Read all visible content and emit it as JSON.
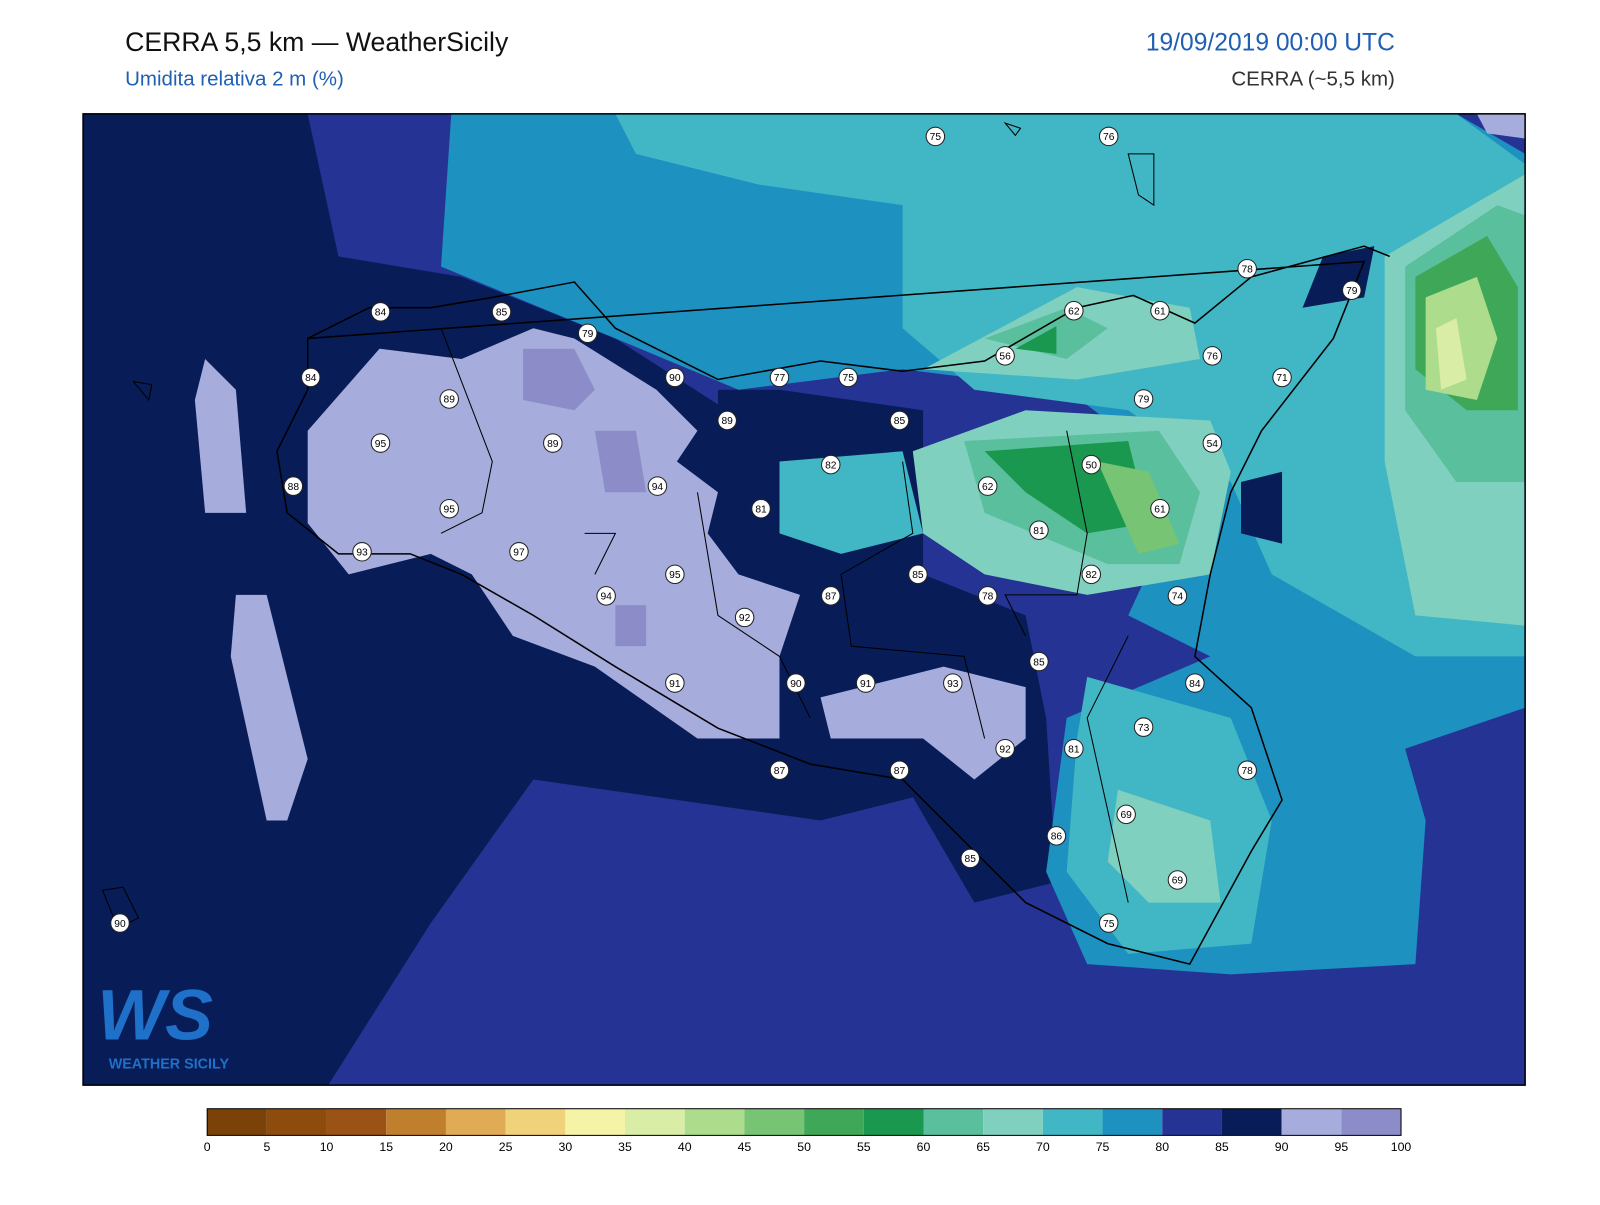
{
  "header": {
    "title": "CERRA 5,5 km — WeatherSicily",
    "subtitle": "Umidita relativa 2 m (%)",
    "datetime": "19/09/2019 00:00 UTC",
    "model": "CERRA (~5,5 km)"
  },
  "stations": [
    75,
    76,
    78,
    79,
    84,
    85,
    79,
    62,
    61,
    56,
    76,
    84,
    90,
    77,
    75,
    71,
    79,
    89,
    89,
    85,
    95,
    89,
    54,
    82,
    50,
    88,
    94,
    62,
    81,
    95,
    61,
    81,
    93,
    97,
    95,
    85,
    82,
    94,
    87,
    78,
    74,
    92,
    85,
    91,
    90,
    91,
    93,
    84,
    73,
    92,
    81,
    87,
    87,
    78,
    69,
    86,
    85,
    69,
    75,
    90
  ],
  "colorbar": {
    "ticks": [
      0,
      5,
      10,
      15,
      20,
      25,
      30,
      35,
      40,
      45,
      50,
      55,
      60,
      65,
      70,
      75,
      80,
      85,
      90,
      95,
      100
    ],
    "colors": [
      "#7a4208",
      "#8d4b0c",
      "#9a5215",
      "#c07f2c",
      "#e0ab55",
      "#f0d27a",
      "#f5f3a5",
      "#d9eda6",
      "#acdc8c",
      "#76c474",
      "#3fa858",
      "#1a9850",
      "#5abf9c",
      "#80d0bf",
      "#41b6c4",
      "#1d91c0",
      "#253494",
      "#081d58",
      "#a6acdc",
      "#8c8cc8"
    ]
  },
  "logo": {
    "mark": "WS",
    "text": "WEATHER SICILY"
  }
}
